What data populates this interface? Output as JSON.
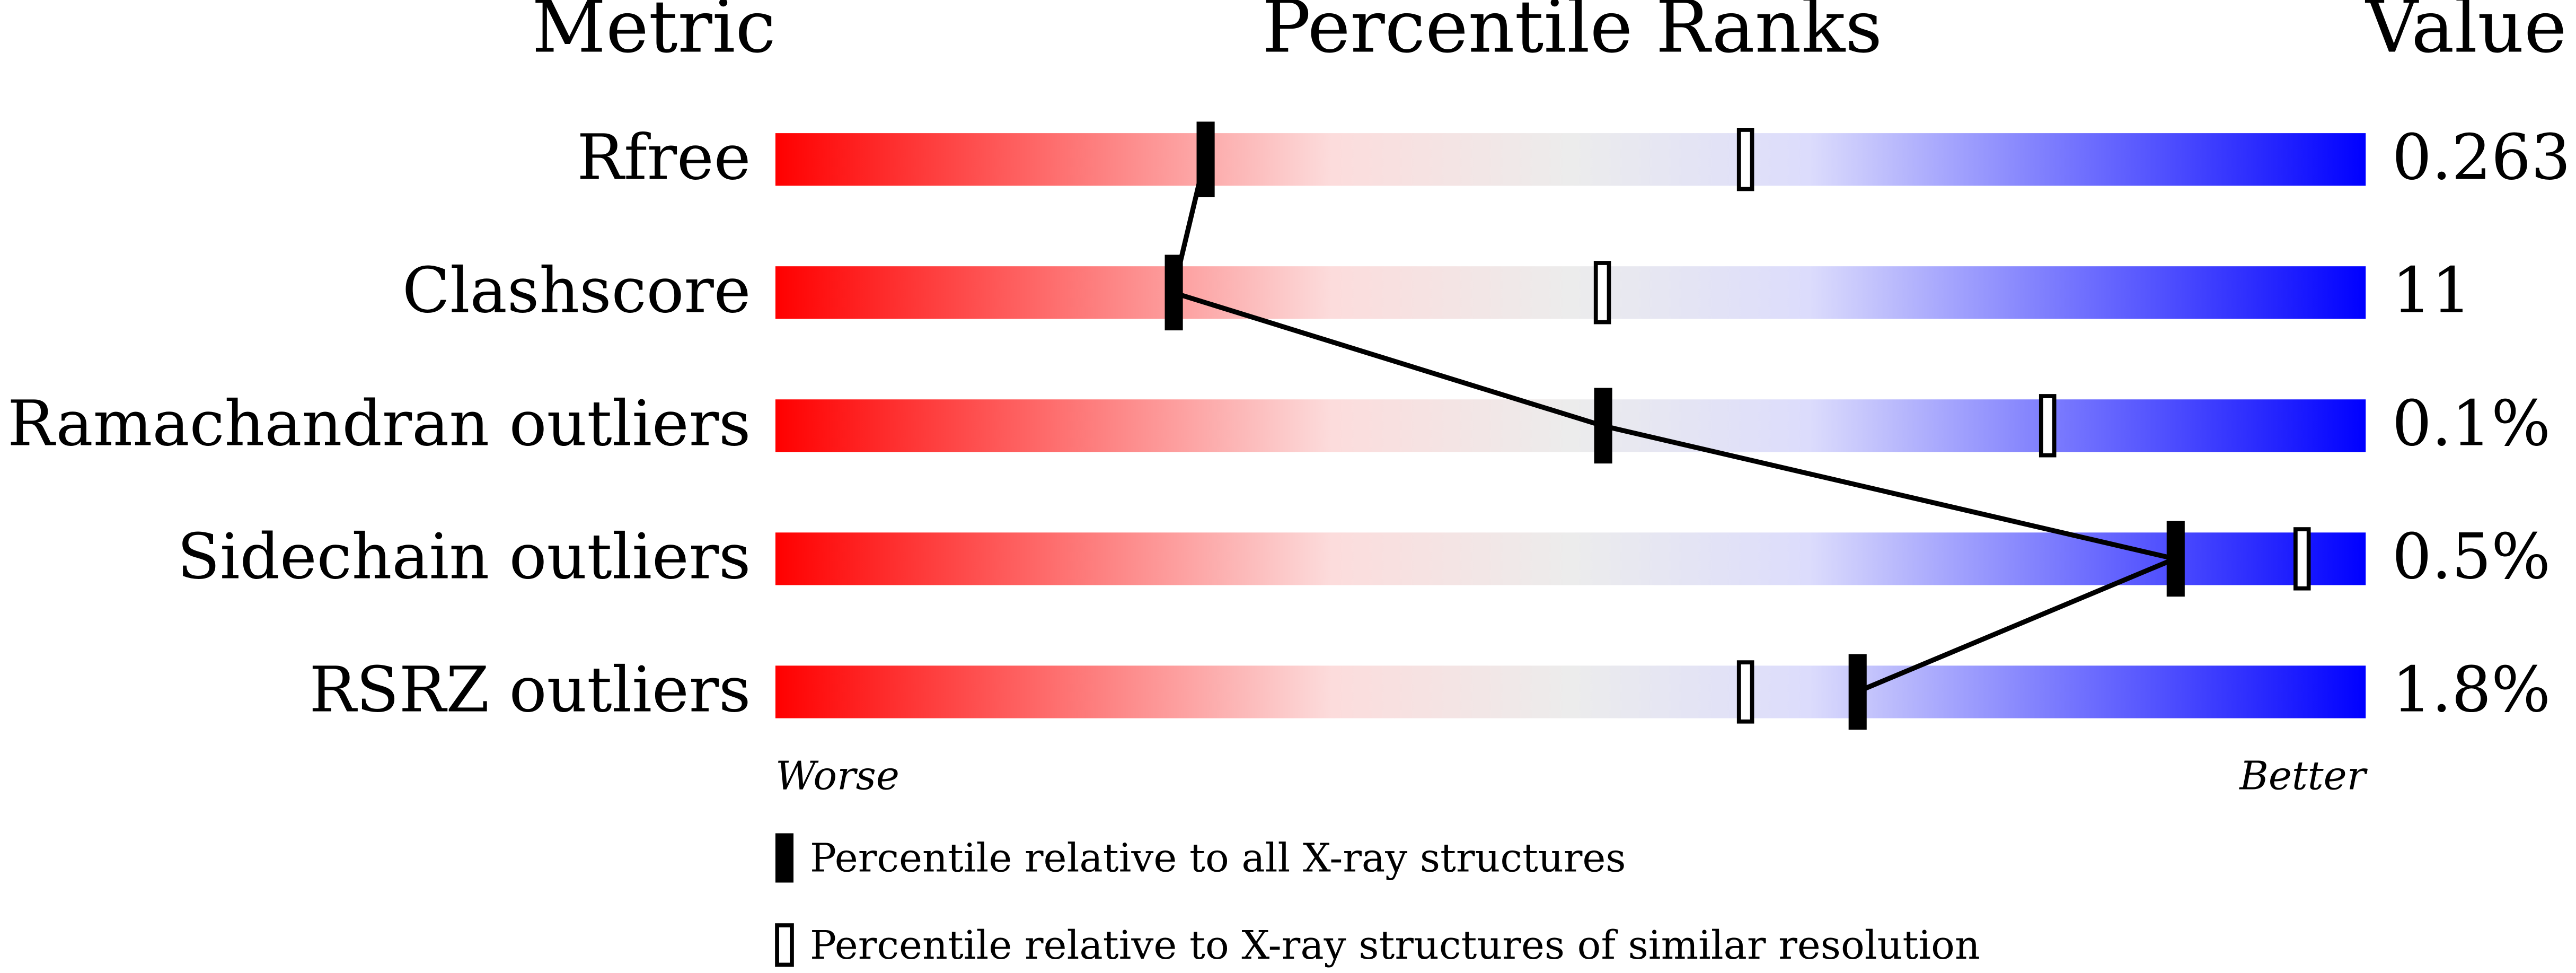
{
  "chart_data": {
    "type": "slider",
    "headers": {
      "metric": "Metric",
      "ranks": "Percentile Ranks",
      "value": "Value"
    },
    "categories": [
      "Rfree",
      "Clashscore",
      "Ramachandran outliers",
      "Sidechain outliers",
      "RSRZ outliers"
    ],
    "metric_values": [
      "0.263",
      "11",
      "0.1%",
      "0.5%",
      "1.8%"
    ],
    "series": [
      {
        "name": "Percentile relative to all X-ray structures",
        "color": "#000000",
        "values": [
          27,
          25,
          52,
          88,
          68
        ]
      },
      {
        "name": "Percentile relative to X-ray structures of similar resolution",
        "color": "#000000",
        "values": [
          61,
          52,
          80,
          96,
          61
        ]
      }
    ],
    "xlim": [
      0,
      100
    ],
    "axis_labels": {
      "low": "Worse",
      "high": "Better"
    }
  }
}
